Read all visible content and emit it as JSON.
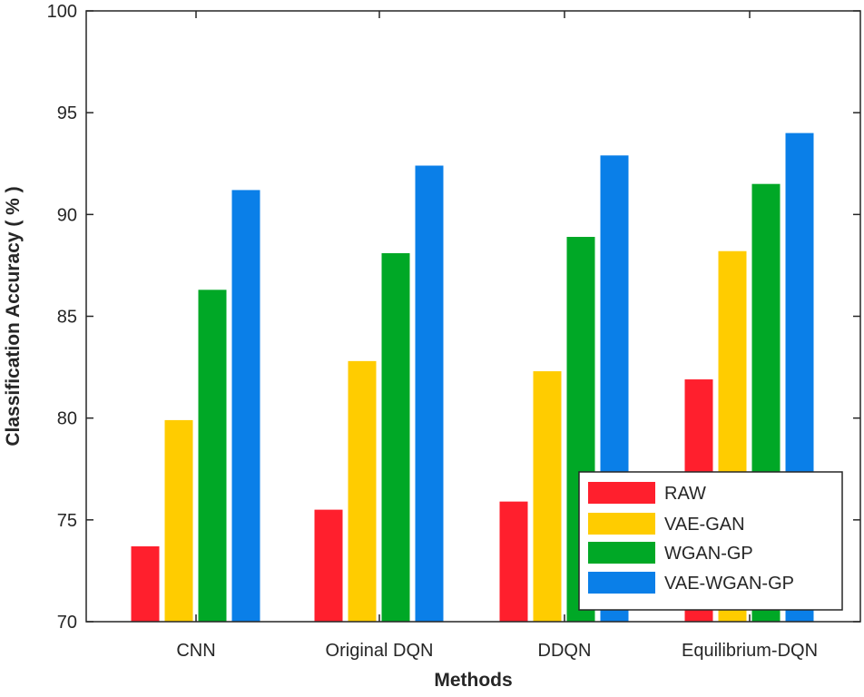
{
  "chart_data": {
    "type": "bar",
    "xlabel": "Methods",
    "ylabel": "Classification Accuracy ( % )",
    "ylim": [
      70,
      100
    ],
    "yticks": [
      70,
      75,
      80,
      85,
      90,
      95,
      100
    ],
    "grid": false,
    "legend_position": "bottom-right",
    "categories": [
      "CNN",
      "Original DQN",
      "DDQN",
      "Equilibrium-DQN"
    ],
    "series": [
      {
        "name": "RAW",
        "color": "#ff1f2d",
        "values": [
          73.7,
          75.5,
          75.9,
          81.9
        ]
      },
      {
        "name": "VAE-GAN",
        "color": "#ffcc00",
        "values": [
          79.9,
          82.8,
          82.3,
          88.2
        ]
      },
      {
        "name": "WGAN-GP",
        "color": "#00a826",
        "values": [
          86.3,
          88.1,
          88.9,
          91.5
        ]
      },
      {
        "name": "VAE-WGAN-GP",
        "color": "#0a7fe8",
        "values": [
          91.2,
          92.4,
          92.9,
          94.0
        ]
      }
    ]
  }
}
